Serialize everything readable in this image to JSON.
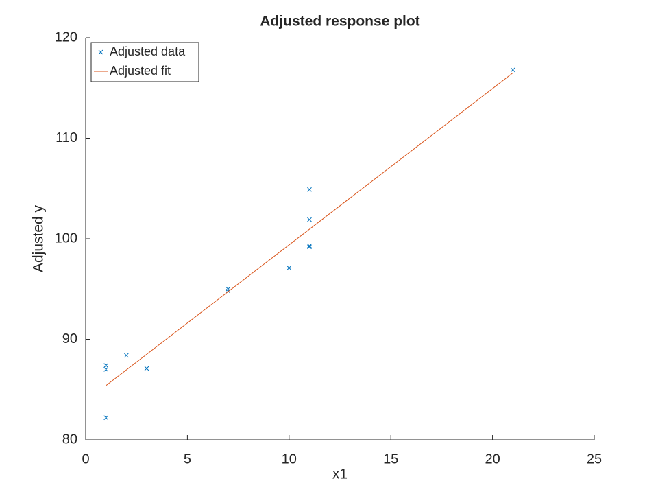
{
  "chart_data": {
    "type": "scatter",
    "title": "Adjusted response plot",
    "x_label": "x1",
    "y_label": "Adjusted y",
    "xlim": [
      0,
      25
    ],
    "xticks": [
      0,
      5,
      10,
      15,
      20,
      25
    ],
    "ylim": [
      80,
      120
    ],
    "yticks": [
      80,
      90,
      100,
      110,
      120
    ],
    "legend": "top-left",
    "series": [
      {
        "name": "Adjusted data",
        "color": "#0072bd",
        "style": "marker",
        "x": [
          1,
          1,
          1,
          2,
          3,
          7,
          7,
          10,
          11,
          11,
          11,
          11,
          21
        ],
        "values": [
          82.2,
          87.0,
          87.4,
          88.4,
          87.1,
          94.8,
          95.0,
          97.1,
          99.2,
          99.3,
          101.9,
          104.9,
          116.8
        ]
      },
      {
        "name": "Adjusted fit",
        "color": "#d95319",
        "style": "line",
        "x": [
          1,
          21
        ],
        "values": [
          85.4,
          116.5
        ]
      }
    ]
  }
}
